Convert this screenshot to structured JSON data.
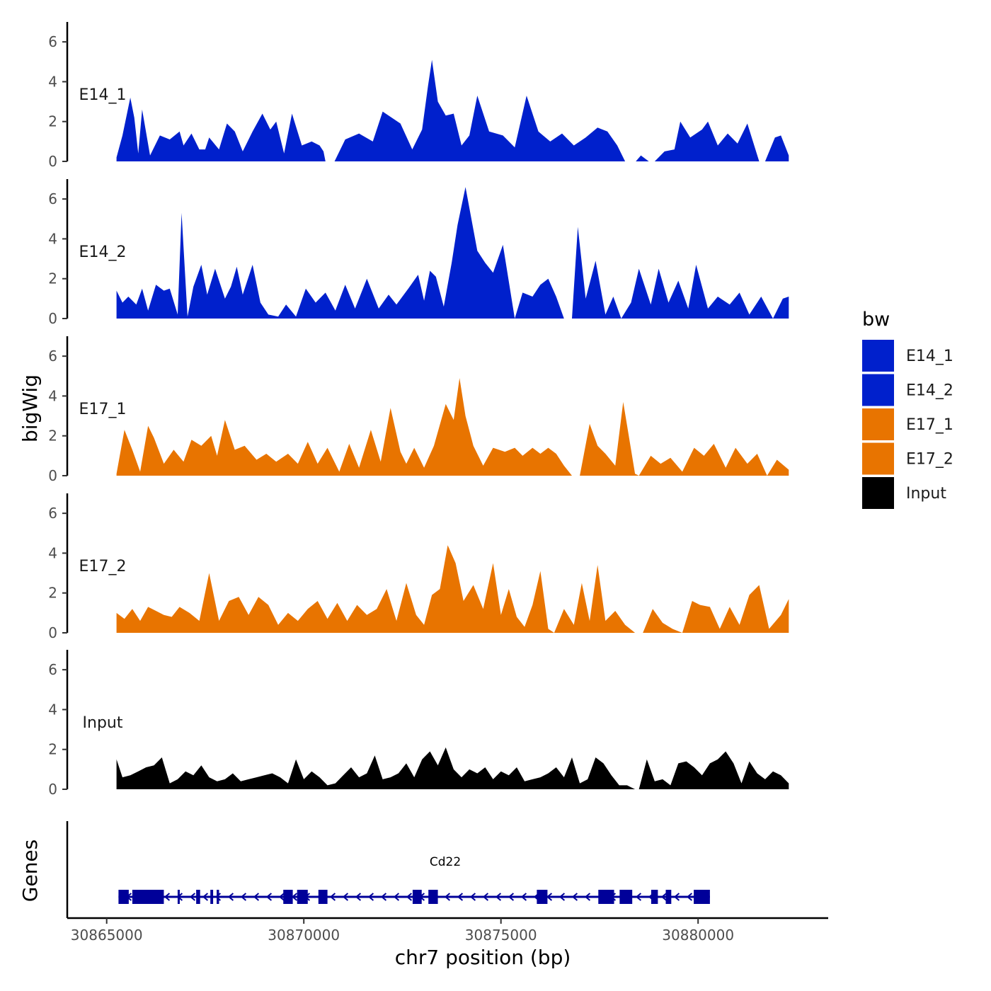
{
  "chart_data": {
    "type": "area",
    "chromosome": "chr7",
    "xlabel": "chr7 position (bp)",
    "ylabel": "bigWig",
    "xlim": [
      30864000,
      30883300
    ],
    "x_ticks": [
      30865000,
      30870000,
      30875000,
      30880000
    ],
    "x_tick_labels": [
      "30865000",
      "30870000",
      "30875000",
      "30880000"
    ],
    "ylim": [
      0,
      7
    ],
    "y_ticks": [
      0,
      2,
      4,
      6
    ],
    "y_tick_labels": [
      "0",
      "2",
      "4",
      "6"
    ],
    "gene_panel_label": "Genes",
    "legend": {
      "title": "bw",
      "entries": [
        {
          "label": "E14_1",
          "color": "#0020CC"
        },
        {
          "label": "E14_2",
          "color": "#0020CC"
        },
        {
          "label": "E17_1",
          "color": "#E87400"
        },
        {
          "label": "E17_2",
          "color": "#E87400"
        },
        {
          "label": "Input",
          "color": "#000000"
        }
      ]
    },
    "series": [
      {
        "name": "E14_1",
        "color": "#0020CC",
        "x": [
          30865250,
          30865400,
          30865600,
          30865700,
          30865800,
          30865900,
          30866100,
          30866350,
          30866600,
          30866850,
          30866950,
          30867150,
          30867350,
          30867500,
          30867600,
          30867850,
          30868050,
          30868250,
          30868450,
          30868700,
          30868950,
          30869150,
          30869300,
          30869500,
          30869700,
          30869950,
          30870200,
          30870400,
          30870500,
          30870550,
          30870780,
          30871050,
          30871400,
          30871750,
          30872000,
          30872450,
          30872750,
          30873000,
          30873150,
          30873250,
          30873400,
          30873600,
          30873800,
          30874000,
          30874200,
          30874400,
          30874700,
          30875050,
          30875350,
          30875650,
          30875950,
          30876250,
          30876550,
          30876850,
          30877150,
          30877450,
          30877700,
          30877950,
          30878150,
          30878420,
          30878550,
          30878750,
          30878900,
          30879150,
          30879400,
          30879550,
          30879800,
          30880100,
          30880250,
          30880500,
          30880750,
          30881000,
          30881250,
          30881550,
          30881700,
          30881950,
          30882100,
          30882300
        ],
        "y": [
          0.2,
          1.3,
          3.2,
          2.2,
          0.4,
          2.6,
          0.3,
          1.3,
          1.1,
          1.5,
          0.8,
          1.4,
          0.6,
          0.6,
          1.2,
          0.6,
          1.9,
          1.5,
          0.5,
          1.5,
          2.4,
          1.6,
          2.0,
          0.4,
          2.4,
          0.8,
          1.0,
          0.8,
          0.5,
          0.0,
          0.0,
          1.1,
          1.4,
          1.0,
          2.5,
          1.9,
          0.6,
          1.6,
          3.8,
          5.1,
          3.0,
          2.3,
          2.4,
          0.8,
          1.3,
          3.3,
          1.5,
          1.3,
          0.7,
          3.3,
          1.5,
          1.0,
          1.4,
          0.8,
          1.2,
          1.7,
          1.5,
          0.8,
          0.0,
          0.0,
          0.3,
          0.0,
          0.0,
          0.5,
          0.6,
          2.0,
          1.2,
          1.6,
          2.0,
          0.8,
          1.4,
          0.9,
          1.9,
          0.0,
          0.0,
          1.2,
          1.3,
          0.3
        ]
      },
      {
        "name": "E14_2",
        "color": "#0020CC",
        "x": [
          30865250,
          30865400,
          30865550,
          30865750,
          30865900,
          30866050,
          30866250,
          30866450,
          30866600,
          30866800,
          30866900,
          30867050,
          30867200,
          30867400,
          30867550,
          30867750,
          30868000,
          30868150,
          30868300,
          30868450,
          30868700,
          30868900,
          30869100,
          30869350,
          30869550,
          30869800,
          30870050,
          30870300,
          30870550,
          30870800,
          30871050,
          30871300,
          30871600,
          30871900,
          30872150,
          30872350,
          30872650,
          30872900,
          30873050,
          30873200,
          30873350,
          30873550,
          30873750,
          30873900,
          30874100,
          30874400,
          30874600,
          30874800,
          30875050,
          30875350,
          30875550,
          30875800,
          30876000,
          30876200,
          30876400,
          30876600,
          30876800,
          30876950,
          30877150,
          30877400,
          30877650,
          30877850,
          30878050,
          30878300,
          30878500,
          30878800,
          30879000,
          30879250,
          30879500,
          30879750,
          30879950,
          30880250,
          30880500,
          30880800,
          30881050,
          30881300,
          30881600,
          30881900,
          30882150,
          30882300
        ],
        "y": [
          1.4,
          0.8,
          1.1,
          0.7,
          1.5,
          0.4,
          1.7,
          1.4,
          1.5,
          0.2,
          5.3,
          0.1,
          1.6,
          2.7,
          1.2,
          2.5,
          1.0,
          1.6,
          2.6,
          1.2,
          2.7,
          0.8,
          0.2,
          0.1,
          0.7,
          0.1,
          1.5,
          0.8,
          1.3,
          0.4,
          1.7,
          0.5,
          2.0,
          0.5,
          1.2,
          0.7,
          1.5,
          2.2,
          0.9,
          2.4,
          2.1,
          0.6,
          2.8,
          4.7,
          6.6,
          3.4,
          2.8,
          2.3,
          3.7,
          0.0,
          1.3,
          1.1,
          1.7,
          2.0,
          1.1,
          0.0,
          0.0,
          4.6,
          1.0,
          2.9,
          0.2,
          1.1,
          0.0,
          0.8,
          2.5,
          0.7,
          2.5,
          0.8,
          1.9,
          0.5,
          2.7,
          0.5,
          1.1,
          0.7,
          1.3,
          0.2,
          1.1,
          0.0,
          1.0,
          1.1
        ]
      },
      {
        "name": "E17_1",
        "color": "#E87400",
        "x": [
          30865250,
          30865450,
          30865650,
          30865850,
          30866050,
          30866200,
          30866450,
          30866700,
          30866950,
          30867150,
          30867400,
          30867650,
          30867800,
          30868000,
          30868250,
          30868500,
          30868800,
          30869050,
          30869300,
          30869600,
          30869850,
          30870100,
          30870350,
          30870600,
          30870900,
          30871150,
          30871400,
          30871700,
          30871950,
          30872200,
          30872450,
          30872600,
          30872800,
          30873050,
          30873300,
          30873600,
          30873800,
          30873950,
          30874100,
          30874300,
          30874550,
          30874800,
          30875100,
          30875350,
          30875550,
          30875800,
          30876000,
          30876200,
          30876400,
          30876600,
          30876800,
          30877000,
          30877250,
          30877450,
          30877650,
          30877900,
          30878100,
          30878400,
          30878500,
          30878800,
          30879050,
          30879300,
          30879600,
          30879900,
          30880150,
          30880400,
          30880700,
          30880950,
          30881250,
          30881500,
          30881750,
          30882000,
          30882300
        ],
        "y": [
          0.1,
          2.3,
          1.3,
          0.2,
          2.5,
          1.9,
          0.6,
          1.3,
          0.7,
          1.8,
          1.5,
          2.0,
          1.0,
          2.8,
          1.3,
          1.5,
          0.8,
          1.1,
          0.7,
          1.1,
          0.6,
          1.7,
          0.6,
          1.4,
          0.2,
          1.6,
          0.4,
          2.3,
          0.7,
          3.4,
          1.2,
          0.6,
          1.4,
          0.4,
          1.5,
          3.6,
          2.8,
          4.9,
          3.0,
          1.5,
          0.5,
          1.4,
          1.2,
          1.4,
          1.0,
          1.4,
          1.1,
          1.4,
          1.1,
          0.5,
          0.0,
          0.0,
          2.6,
          1.5,
          1.1,
          0.5,
          3.7,
          0.1,
          0.0,
          1.0,
          0.6,
          0.9,
          0.2,
          1.4,
          1.0,
          1.6,
          0.4,
          1.4,
          0.6,
          1.1,
          0.0,
          0.8,
          0.3
        ]
      },
      {
        "name": "E17_2",
        "color": "#E87400",
        "x": [
          30865250,
          30865450,
          30865650,
          30865850,
          30866050,
          30866250,
          30866450,
          30866650,
          30866850,
          30867100,
          30867350,
          30867600,
          30867850,
          30868100,
          30868350,
          30868600,
          30868850,
          30869100,
          30869350,
          30869600,
          30869850,
          30870100,
          30870350,
          30870600,
          30870850,
          30871100,
          30871350,
          30871600,
          30871850,
          30872100,
          30872350,
          30872600,
          30872850,
          30873050,
          30873250,
          30873450,
          30873650,
          30873850,
          30874050,
          30874300,
          30874550,
          30874800,
          30875000,
          30875200,
          30875400,
          30875600,
          30875800,
          30876000,
          30876200,
          30876350,
          30876600,
          30876850,
          30877050,
          30877250,
          30877450,
          30877650,
          30877900,
          30878150,
          30878400,
          30878600,
          30878850,
          30879100,
          30879350,
          30879600,
          30879850,
          30880050,
          30880300,
          30880550,
          30880800,
          30881050,
          30881300,
          30881550,
          30881800,
          30882100,
          30882300
        ],
        "y": [
          1.0,
          0.7,
          1.2,
          0.6,
          1.3,
          1.1,
          0.9,
          0.8,
          1.3,
          1.0,
          0.6,
          3.0,
          0.6,
          1.6,
          1.8,
          0.9,
          1.8,
          1.4,
          0.4,
          1.0,
          0.6,
          1.2,
          1.6,
          0.7,
          1.5,
          0.6,
          1.4,
          0.9,
          1.2,
          2.2,
          0.6,
          2.5,
          0.9,
          0.4,
          1.9,
          2.2,
          4.4,
          3.5,
          1.6,
          2.4,
          1.2,
          3.5,
          0.9,
          2.2,
          0.8,
          0.3,
          1.4,
          3.1,
          0.2,
          0.0,
          1.2,
          0.4,
          2.5,
          0.6,
          3.4,
          0.6,
          1.1,
          0.4,
          0.0,
          0.0,
          1.2,
          0.5,
          0.2,
          0.0,
          1.6,
          1.4,
          1.3,
          0.2,
          1.3,
          0.4,
          1.9,
          2.4,
          0.2,
          0.9,
          1.7
        ]
      },
      {
        "name": "Input",
        "color": "#000000",
        "x": [
          30865250,
          30865400,
          30865600,
          30865800,
          30866000,
          30866200,
          30866400,
          30866600,
          30866800,
          30867000,
          30867200,
          30867400,
          30867600,
          30867800,
          30868000,
          30868200,
          30868400,
          30868600,
          30868800,
          30869000,
          30869200,
          30869400,
          30869600,
          30869800,
          30870000,
          30870200,
          30870400,
          30870600,
          30870800,
          30871000,
          30871200,
          30871400,
          30871600,
          30871800,
          30872000,
          30872200,
          30872400,
          30872600,
          30872800,
          30873000,
          30873200,
          30873400,
          30873600,
          30873800,
          30874000,
          30874200,
          30874400,
          30874600,
          30874800,
          30875000,
          30875200,
          30875400,
          30875600,
          30875800,
          30876000,
          30876200,
          30876400,
          30876600,
          30876800,
          30877000,
          30877200,
          30877400,
          30877600,
          30877800,
          30878000,
          30878200,
          30878400,
          30878500,
          30878700,
          30878900,
          30879100,
          30879300,
          30879500,
          30879700,
          30879900,
          30880100,
          30880300,
          30880500,
          30880700,
          30880900,
          30881100,
          30881300,
          30881500,
          30881700,
          30881900,
          30882100,
          30882300
        ],
        "y": [
          1.5,
          0.6,
          0.7,
          0.9,
          1.1,
          1.2,
          1.6,
          0.3,
          0.5,
          0.9,
          0.7,
          1.2,
          0.6,
          0.4,
          0.5,
          0.8,
          0.4,
          0.5,
          0.6,
          0.7,
          0.8,
          0.6,
          0.3,
          1.5,
          0.5,
          0.9,
          0.6,
          0.2,
          0.3,
          0.7,
          1.1,
          0.6,
          0.8,
          1.7,
          0.5,
          0.6,
          0.8,
          1.3,
          0.6,
          1.5,
          1.9,
          1.2,
          2.1,
          1.0,
          0.6,
          1.0,
          0.8,
          1.1,
          0.5,
          0.9,
          0.7,
          1.1,
          0.4,
          0.5,
          0.6,
          0.8,
          1.1,
          0.6,
          1.6,
          0.3,
          0.5,
          1.6,
          1.3,
          0.7,
          0.2,
          0.2,
          0.0,
          0.0,
          1.5,
          0.4,
          0.5,
          0.2,
          1.3,
          1.4,
          1.1,
          0.7,
          1.3,
          1.5,
          1.9,
          1.3,
          0.3,
          1.4,
          0.8,
          0.5,
          0.9,
          0.7,
          0.3
        ]
      }
    ],
    "gene": {
      "name": "Cd22",
      "strand": "-",
      "start": 30865300,
      "end": 30880300,
      "color": "#000099",
      "exons": [
        [
          30865300,
          30865560
        ],
        [
          30865650,
          30866450
        ],
        [
          30866800,
          30866850
        ],
        [
          30867270,
          30867370
        ],
        [
          30867630,
          30867700
        ],
        [
          30867790,
          30867850
        ],
        [
          30869480,
          30869720
        ],
        [
          30869830,
          30870100
        ],
        [
          30870370,
          30870600
        ],
        [
          30872760,
          30872990
        ],
        [
          30873160,
          30873400
        ],
        [
          30875910,
          30876180
        ],
        [
          30877470,
          30877870
        ],
        [
          30878010,
          30878330
        ],
        [
          30878810,
          30878980
        ],
        [
          30879180,
          30879320
        ],
        [
          30879890,
          30880300
        ]
      ]
    }
  }
}
